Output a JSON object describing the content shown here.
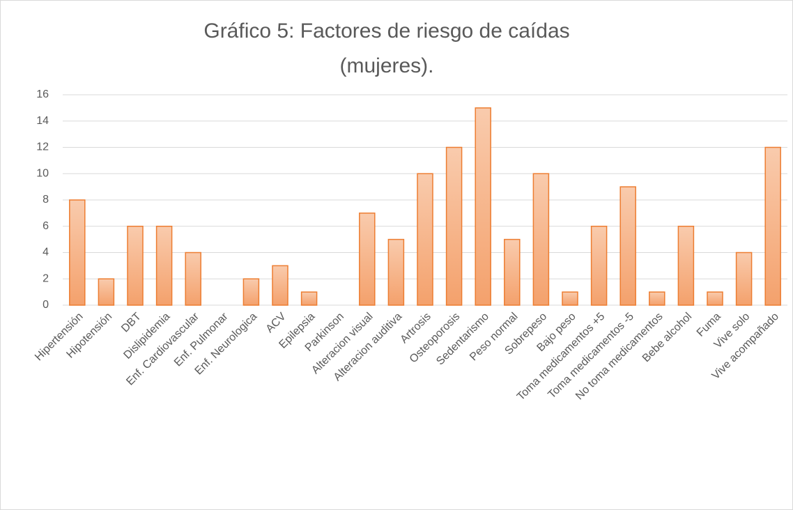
{
  "chart_data": {
    "type": "bar",
    "title": [
      "Gráfico 5: Factores de riesgo de caídas",
      "(mujeres)."
    ],
    "categories": [
      "Hipertensión",
      "Hipotensión",
      "DBT",
      "Dislipidemia",
      "Enf. Cardiovascular",
      "Enf. Pulmonar",
      "Enf. Neurologica",
      "ACV",
      "Epilepsia",
      "Parkinson",
      "Alteracion visual",
      "Alteracion auditiva",
      "Artrosis",
      "Osteoporosis",
      "Sedentarismo",
      "Peso normal",
      "Sobrepeso",
      "Bajo peso",
      "Toma medicamentos +5",
      "Toma medicamentos -5",
      "No toma medicamentos",
      "Bebe alcohol",
      "Fuma",
      "Vive solo",
      "Vive acompañado"
    ],
    "values": [
      8,
      2,
      6,
      6,
      4,
      0,
      2,
      3,
      1,
      0,
      7,
      5,
      10,
      12,
      15,
      5,
      10,
      1,
      6,
      9,
      1,
      6,
      1,
      4,
      12
    ],
    "color": "#ed7d31",
    "gradient": [
      "#f9cbad",
      "#f4a16c"
    ],
    "ylim": [
      0,
      16
    ],
    "yticks": [
      0,
      2,
      4,
      6,
      8,
      10,
      12,
      14,
      16
    ],
    "grid": true
  }
}
